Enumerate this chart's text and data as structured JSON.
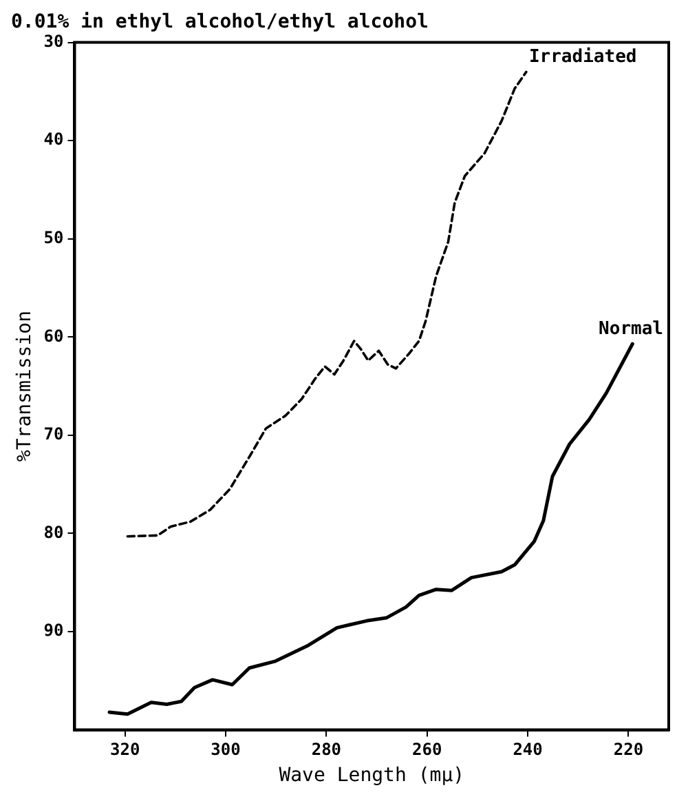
{
  "chart_data": {
    "type": "line",
    "title": "0.01% in ethyl alcohol/ethyl alcohol",
    "xlabel": "Wave Length (mμ)",
    "ylabel": "%Transmission",
    "xlim": [
      330,
      212
    ],
    "ylim": [
      100,
      30
    ],
    "xticks": [
      320,
      300,
      280,
      260,
      240,
      220
    ],
    "yticks": [
      30,
      40,
      50,
      60,
      70,
      80,
      90
    ],
    "grid": false,
    "legend": false,
    "marker": "none",
    "series": [
      {
        "name": "Irradiated",
        "color": "#000000",
        "line_style": "dashed",
        "x": [
          319.5,
          313.5,
          310.9,
          307.0,
          303.1,
          299.2,
          295.3,
          292.0,
          288.1,
          284.9,
          282.3,
          280.3,
          278.4,
          276.6,
          274.5,
          273.2,
          271.7,
          269.6,
          267.8,
          266.2,
          263.6,
          261.6,
          260.3,
          258.2,
          255.8,
          254.5,
          252.5,
          248.6,
          245.2,
          242.6,
          240.3
        ],
        "values": [
          80.3,
          80.2,
          79.3,
          78.8,
          77.6,
          75.5,
          72.2,
          69.3,
          68.0,
          66.3,
          64.3,
          63.0,
          63.8,
          62.4,
          60.4,
          61.2,
          62.4,
          61.4,
          62.8,
          63.2,
          61.7,
          60.4,
          58.4,
          53.8,
          50.3,
          46.3,
          43.6,
          41.3,
          38.0,
          34.7,
          33.0
        ]
      },
      {
        "name": "Normal",
        "color": "#000000",
        "line_style": "solid",
        "x": [
          323.1,
          319.5,
          314.8,
          311.7,
          308.8,
          306.2,
          302.6,
          298.7,
          295.3,
          290.1,
          283.6,
          277.9,
          272.0,
          268.1,
          264.2,
          261.6,
          258.2,
          255.1,
          251.2,
          245.2,
          242.6,
          238.7,
          236.9,
          235.1,
          231.7,
          227.8,
          224.4,
          219.2
        ],
        "values": [
          98.2,
          98.4,
          97.2,
          97.4,
          97.1,
          95.7,
          94.9,
          95.4,
          93.7,
          93.0,
          91.4,
          89.6,
          88.9,
          88.6,
          87.5,
          86.3,
          85.7,
          85.8,
          84.5,
          83.9,
          83.2,
          80.8,
          78.7,
          74.2,
          70.9,
          68.4,
          65.7,
          60.7
        ]
      }
    ]
  }
}
